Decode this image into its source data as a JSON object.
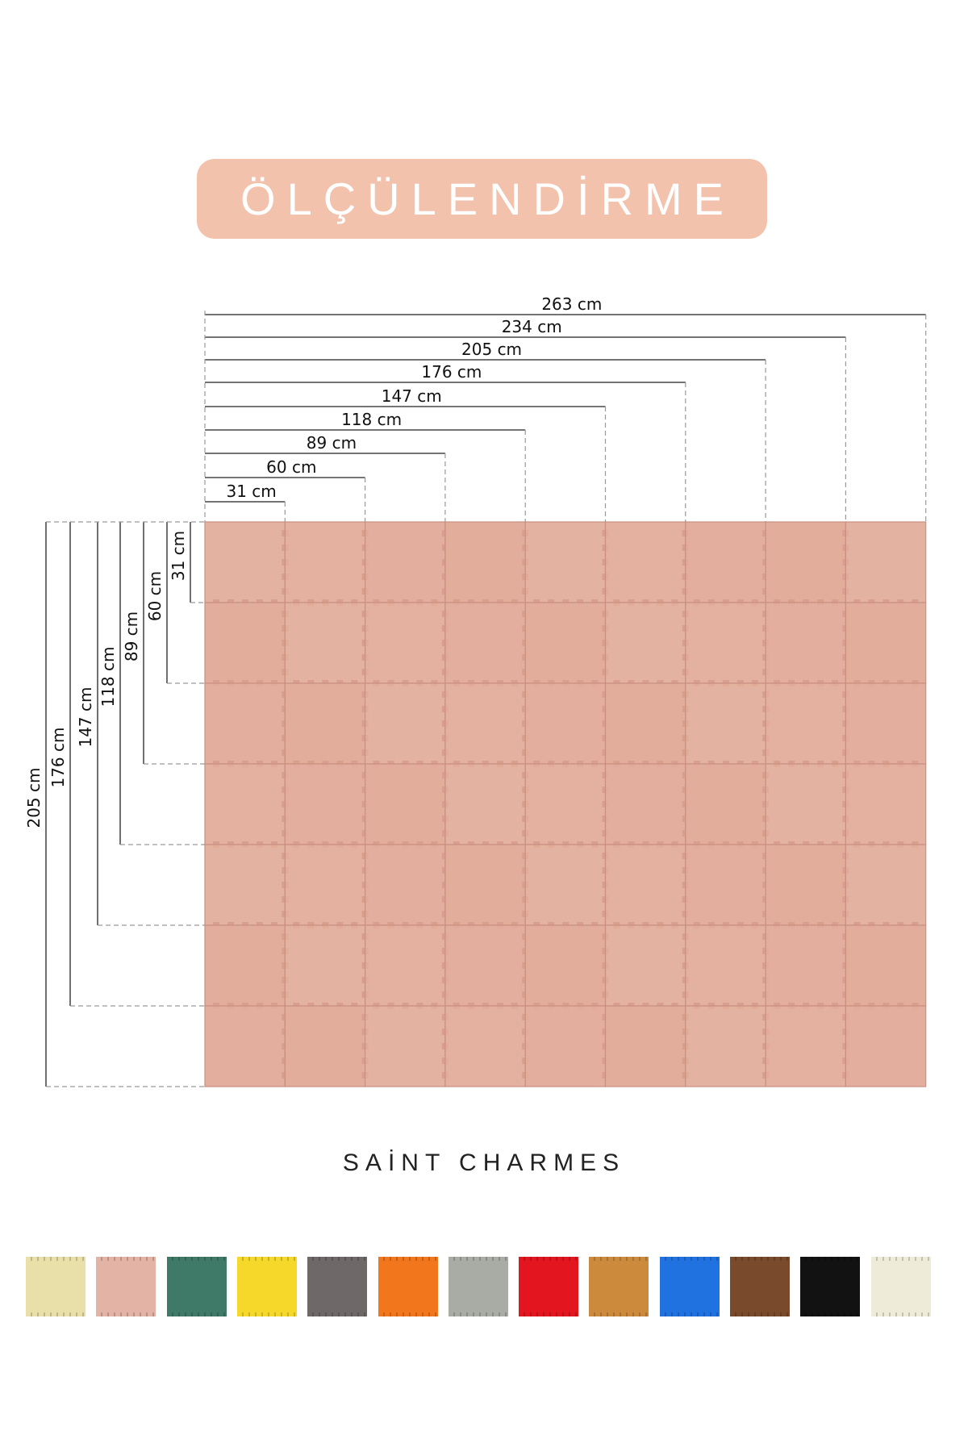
{
  "header": {
    "title": "ÖLÇÜLENDİRME"
  },
  "dimensions": {
    "width_labels": [
      "31 cm",
      "60 cm",
      "89 cm",
      "118 cm",
      "147 cm",
      "176 cm",
      "205 cm",
      "234 cm",
      "263 cm"
    ],
    "height_labels": [
      "31 cm",
      "60 cm",
      "89 cm",
      "118 cm",
      "147 cm",
      "176 cm",
      "205 cm"
    ]
  },
  "grid": {
    "columns": 9,
    "rows": 7,
    "tile_color": "#e2ab99"
  },
  "brand": "SAİNT CHARMES",
  "swatches": [
    {
      "name": "cream",
      "color": "#e9dfa9"
    },
    {
      "name": "powder-pink",
      "color": "#e3b4a6"
    },
    {
      "name": "teal-green",
      "color": "#3f7a69"
    },
    {
      "name": "yellow",
      "color": "#f5d82a"
    },
    {
      "name": "dark-grey",
      "color": "#6e6868"
    },
    {
      "name": "orange",
      "color": "#f2761b"
    },
    {
      "name": "light-grey",
      "color": "#a9aba5"
    },
    {
      "name": "red",
      "color": "#e3151f"
    },
    {
      "name": "camel",
      "color": "#cc8a3c"
    },
    {
      "name": "blue",
      "color": "#1f72e0"
    },
    {
      "name": "brown",
      "color": "#7a4a2c"
    },
    {
      "name": "black",
      "color": "#121212"
    },
    {
      "name": "ivory",
      "color": "#efebd9"
    }
  ]
}
